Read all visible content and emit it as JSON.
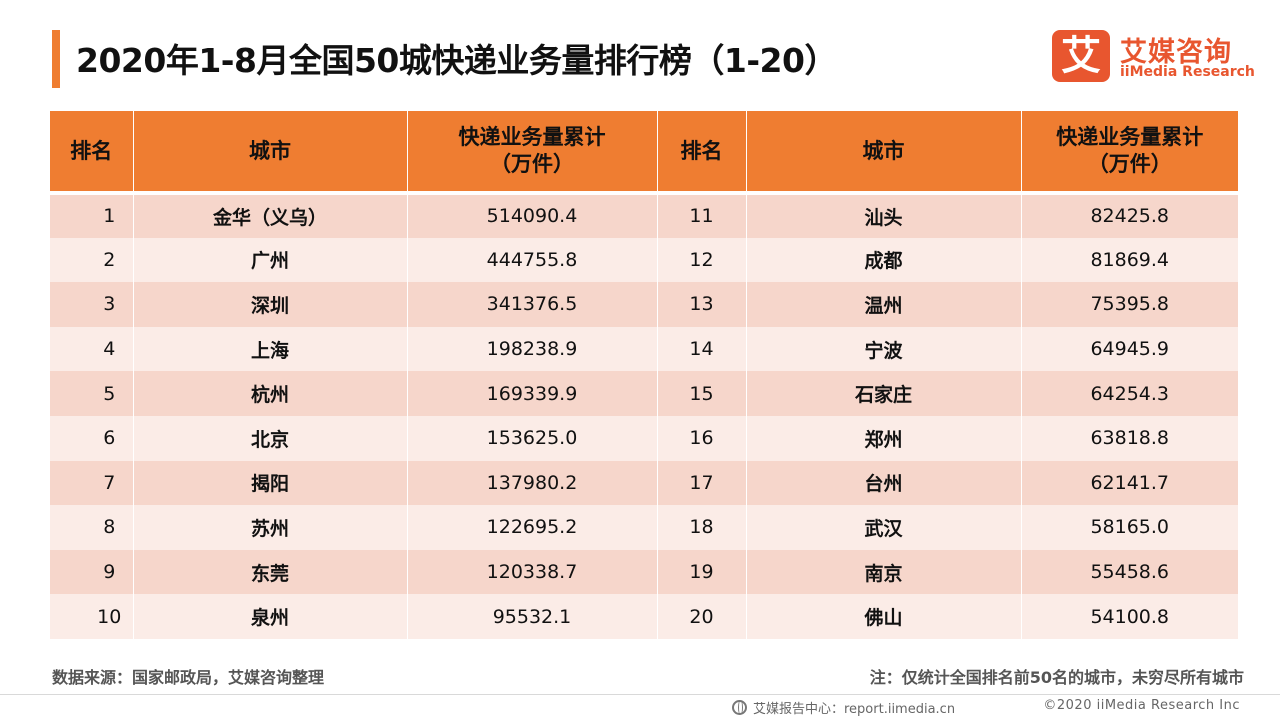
{
  "header": {
    "title": "2020年1-8月全国50城快递业务量排行榜（1-20）"
  },
  "logo": {
    "mark": "艾",
    "name_cn": "艾媒咨询",
    "name_en": "iiMedia Research",
    "brand_color": "#e8562f"
  },
  "table": {
    "header_color": "#ef7d31",
    "columns": {
      "rank": "排名",
      "city": "城市",
      "volume_line1": "快递业务量累计",
      "volume_line2": "（万件）"
    },
    "left": [
      {
        "rank": "1",
        "city": "金华（义乌）",
        "volume": "514090.4"
      },
      {
        "rank": "2",
        "city": "广州",
        "volume": "444755.8"
      },
      {
        "rank": "3",
        "city": "深圳",
        "volume": "341376.5"
      },
      {
        "rank": "4",
        "city": "上海",
        "volume": "198238.9"
      },
      {
        "rank": "5",
        "city": "杭州",
        "volume": "169339.9"
      },
      {
        "rank": "6",
        "city": "北京",
        "volume": "153625.0"
      },
      {
        "rank": "7",
        "city": "揭阳",
        "volume": "137980.2"
      },
      {
        "rank": "8",
        "city": "苏州",
        "volume": "122695.2"
      },
      {
        "rank": "9",
        "city": "东莞",
        "volume": "120338.7"
      },
      {
        "rank": "10",
        "city": "泉州",
        "volume": "95532.1"
      }
    ],
    "right": [
      {
        "rank": "11",
        "city": "汕头",
        "volume": "82425.8"
      },
      {
        "rank": "12",
        "city": "成都",
        "volume": "81869.4"
      },
      {
        "rank": "13",
        "city": "温州",
        "volume": "75395.8"
      },
      {
        "rank": "14",
        "city": "宁波",
        "volume": "64945.9"
      },
      {
        "rank": "15",
        "city": "石家庄",
        "volume": "64254.3"
      },
      {
        "rank": "16",
        "city": "郑州",
        "volume": "63818.8"
      },
      {
        "rank": "17",
        "city": "台州",
        "volume": "62141.7"
      },
      {
        "rank": "18",
        "city": "武汉",
        "volume": "58165.0"
      },
      {
        "rank": "19",
        "city": "南京",
        "volume": "55458.6"
      },
      {
        "rank": "20",
        "city": "佛山",
        "volume": "54100.8"
      }
    ]
  },
  "footer": {
    "source": "数据来源：国家邮政局，艾媒咨询整理",
    "note": "注：仅统计全国排名前50名的城市，未穷尽所有城市",
    "report_center": "艾媒报告中心：report.iimedia.cn",
    "copyright": "©2020  iiMedia Research  Inc",
    "icon": "globe-icon"
  }
}
